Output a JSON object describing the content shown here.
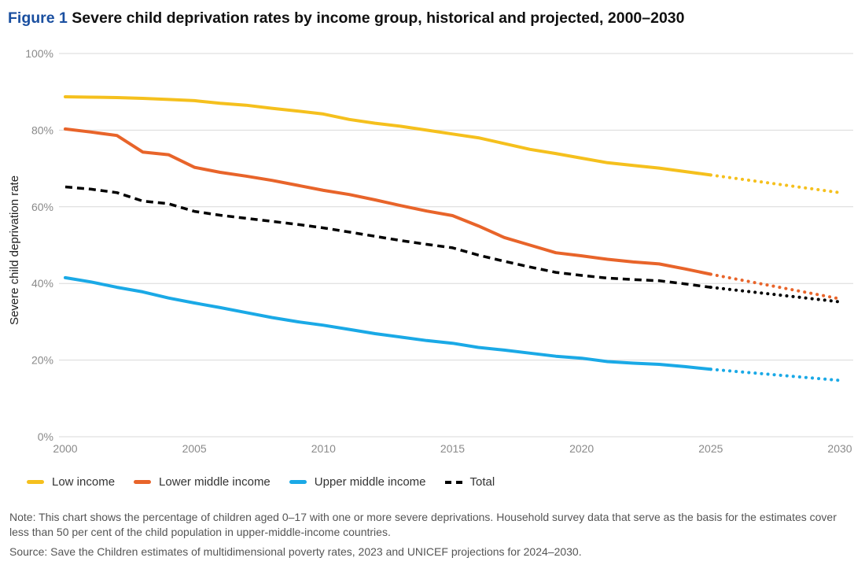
{
  "figure_label": "Figure 1",
  "title": "Severe child deprivation rates by income group, historical and projected, 2000–2030",
  "note": "Note: This chart shows the percentage of children aged 0–17 with one or more severe deprivations. Household survey data that serve as the basis for the estimates cover less than 50 per cent of the child population in upper-middle-income countries.",
  "source": "Source: Save the Children estimates of multidimensional poverty rates, 2023 and UNICEF projections for 2024–2030.",
  "chart_data": {
    "type": "line",
    "title": "Severe child deprivation rates by income group, historical and projected, 2000–2030",
    "xlabel": "",
    "ylabel": "Severe child deprivation rate",
    "xlim": [
      2000,
      2030
    ],
    "ylim": [
      0,
      100
    ],
    "x_ticks": [
      "2000",
      "2005",
      "2010",
      "2015",
      "2020",
      "2025",
      "2030"
    ],
    "y_ticks": [
      "0%",
      "20%",
      "40%",
      "60%",
      "80%",
      "100%"
    ],
    "grid": "horizontal",
    "legend_position": "bottom-left",
    "historical_end": 2025,
    "projection": {
      "from": 2025,
      "to": 2030,
      "style": "dotted"
    },
    "x": [
      2000,
      2001,
      2002,
      2003,
      2004,
      2005,
      2006,
      2007,
      2008,
      2009,
      2010,
      2011,
      2012,
      2013,
      2014,
      2015,
      2016,
      2017,
      2018,
      2019,
      2020,
      2021,
      2022,
      2023,
      2024,
      2025
    ],
    "series": [
      {
        "name": "Low income",
        "color": "#f5c01d",
        "values": [
          88.7,
          88.6,
          88.5,
          88.3,
          88.0,
          87.7,
          87.0,
          86.5,
          85.7,
          85.0,
          84.2,
          82.8,
          81.8,
          81.0,
          80.0,
          79.0,
          78.0,
          76.5,
          75.0,
          73.9,
          72.7,
          71.5,
          70.8,
          70.1,
          69.2,
          68.3
        ],
        "projection": [
          [
            2025,
            68.3
          ],
          [
            2030,
            63.7
          ]
        ]
      },
      {
        "name": "Lower middle income",
        "color": "#e8642a",
        "values": [
          80.3,
          79.5,
          78.6,
          74.3,
          73.6,
          70.3,
          69.0,
          68.0,
          66.9,
          65.6,
          64.3,
          63.2,
          61.8,
          60.3,
          58.9,
          57.7,
          55.0,
          52.0,
          50.0,
          48.0,
          47.2,
          46.3,
          45.6,
          45.1,
          43.8,
          42.4
        ],
        "projection": [
          [
            2025,
            42.4
          ],
          [
            2030,
            36.0
          ]
        ]
      },
      {
        "name": "Upper middle income",
        "color": "#1aa9e6",
        "values": [
          41.5,
          40.4,
          39.0,
          37.8,
          36.2,
          34.9,
          33.7,
          32.4,
          31.1,
          30.0,
          29.1,
          28.0,
          26.9,
          26.0,
          25.1,
          24.4,
          23.3,
          22.6,
          21.8,
          21.0,
          20.5,
          19.6,
          19.2,
          18.9,
          18.3,
          17.6
        ],
        "projection": [
          [
            2025,
            17.6
          ],
          [
            2030,
            14.7
          ]
        ]
      },
      {
        "name": "Total",
        "color": "#000000",
        "values": [
          65.2,
          64.6,
          63.7,
          61.5,
          60.8,
          58.8,
          57.8,
          57.0,
          56.2,
          55.4,
          54.5,
          53.4,
          52.3,
          51.2,
          50.2,
          49.3,
          47.4,
          45.8,
          44.3,
          42.9,
          42.1,
          41.4,
          41.0,
          40.7,
          39.9,
          39.0
        ],
        "projection": [
          [
            2025,
            39.0
          ],
          [
            2030,
            35.2
          ]
        ]
      }
    ]
  }
}
